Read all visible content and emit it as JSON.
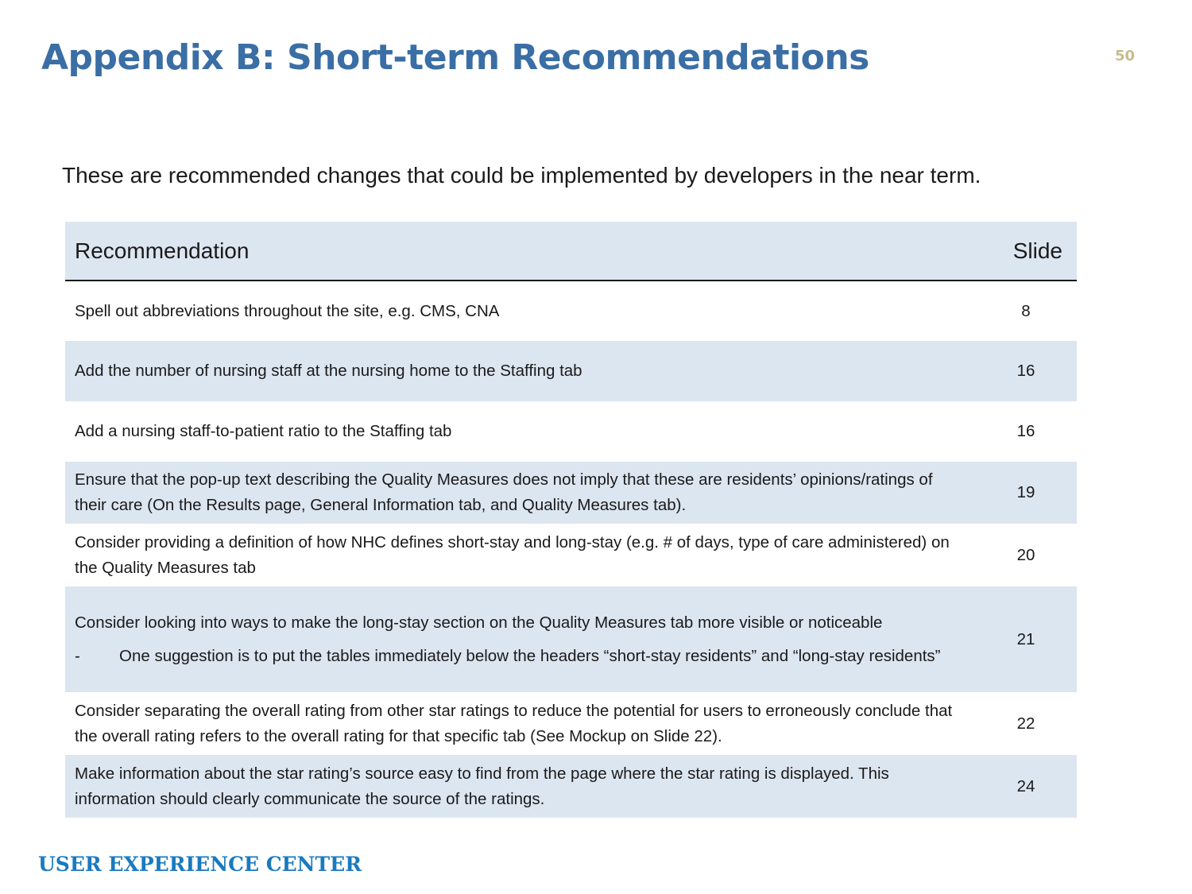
{
  "slide": {
    "title": "Appendix B: Short-term Recommendations",
    "number": "50",
    "intro": "These are recommended changes that could be implemented by developers in the near term.",
    "footer": "USER EXPERIENCE CENTER"
  },
  "table": {
    "headers": {
      "recommendation": "Recommendation",
      "slide": "Slide"
    },
    "rows": [
      {
        "text": "Spell out abbreviations throughout the site, e.g. CMS, CNA",
        "slide": "8"
      },
      {
        "text": "Add the number of nursing staff at the nursing home to the Staffing tab",
        "slide": "16"
      },
      {
        "text": "Add a nursing staff-to-patient ratio to the Staffing tab",
        "slide": "16"
      },
      {
        "text": "Ensure that the pop-up text describing the Quality Measures does not imply that these are residents’ opinions/ratings of their care (On the Results page, General Information tab, and Quality Measures tab).",
        "slide": "19"
      },
      {
        "text": "Consider providing a definition of how NHC defines short-stay and long-stay (e.g. # of days, type of care administered) on the Quality Measures tab",
        "slide": "20"
      },
      {
        "text": "Consider looking into ways to make the long-stay section on the Quality Measures tab more visible or noticeable",
        "sub_dash": "-",
        "sub_text": "One suggestion is to put the tables immediately below the headers “short-stay residents” and “long-stay residents”",
        "slide": "21"
      },
      {
        "text": "Consider separating the overall rating from other star ratings to reduce the potential for users to erroneously conclude that the overall rating refers to the overall rating for that specific tab (See Mockup on Slide 22).",
        "slide": "22"
      },
      {
        "text": "Make information about the star rating’s source easy to find from the page where the star rating is displayed. This information should clearly communicate the source of the ratings.",
        "slide": "24"
      }
    ]
  }
}
